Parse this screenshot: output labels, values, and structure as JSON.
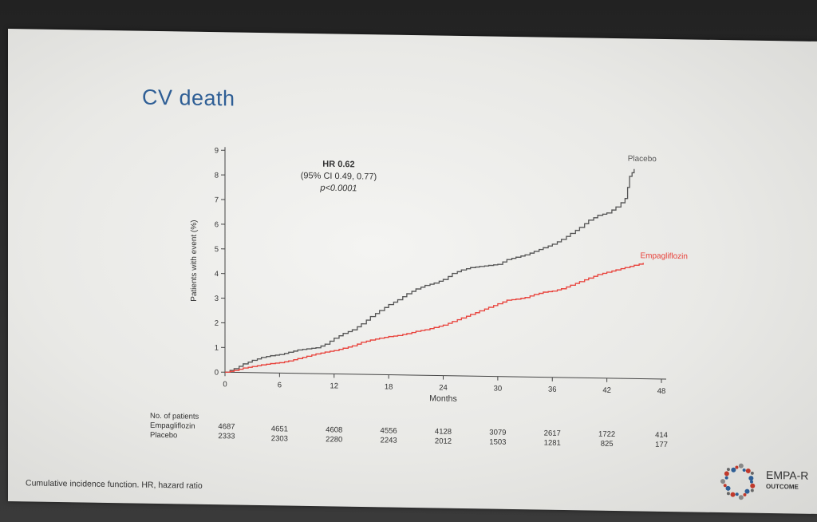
{
  "slide": {
    "title": "CV death",
    "footnote": "Cumulative incidence function. HR, hazard ratio"
  },
  "logo": {
    "line1": "EMPA-R",
    "line2": "OUTCOME"
  },
  "chart_data": {
    "type": "line",
    "ylabel": "Patients with event (%)",
    "xlabel": "Months",
    "xlim": [
      0,
      48
    ],
    "ylim": [
      0,
      9
    ],
    "x_ticks": [
      0,
      6,
      12,
      18,
      24,
      30,
      36,
      42,
      48
    ],
    "y_ticks": [
      0,
      1,
      2,
      3,
      4,
      5,
      6,
      7,
      8,
      9
    ],
    "grid": false,
    "annotation": {
      "hr": "HR 0.62",
      "ci": "(95% CI 0.49, 0.77)",
      "p": "p<0.0001"
    },
    "series": [
      {
        "name": "Placebo",
        "color": "#555555",
        "x": [
          0,
          1,
          2,
          3,
          4,
          5,
          6,
          7,
          8,
          9,
          10,
          11,
          12,
          13,
          14,
          15,
          16,
          17,
          18,
          19,
          20,
          21,
          22,
          23,
          24,
          25,
          26,
          27,
          28,
          29,
          30,
          31,
          32,
          33,
          34,
          35,
          36,
          37,
          38,
          39,
          40,
          41,
          42,
          43,
          44,
          44.5,
          45
        ],
        "y": [
          0,
          0.15,
          0.35,
          0.5,
          0.62,
          0.7,
          0.75,
          0.85,
          0.95,
          1.0,
          1.05,
          1.2,
          1.45,
          1.65,
          1.8,
          2.05,
          2.35,
          2.6,
          2.85,
          3.05,
          3.3,
          3.5,
          3.65,
          3.75,
          3.9,
          4.15,
          4.3,
          4.4,
          4.45,
          4.5,
          4.55,
          4.75,
          4.85,
          4.95,
          5.1,
          5.25,
          5.4,
          5.6,
          5.85,
          6.1,
          6.4,
          6.6,
          6.7,
          6.95,
          7.3,
          8.2,
          8.5
        ]
      },
      {
        "name": "Empagliflozin",
        "color": "#e8413a",
        "x": [
          0,
          1,
          2,
          3,
          4,
          5,
          6,
          7,
          8,
          9,
          10,
          11,
          12,
          13,
          14,
          15,
          16,
          17,
          18,
          19,
          20,
          21,
          22,
          23,
          24,
          25,
          26,
          27,
          28,
          29,
          30,
          31,
          32,
          33,
          34,
          35,
          36,
          37,
          38,
          39,
          40,
          41,
          42,
          43,
          44,
          45,
          46
        ],
        "y": [
          0,
          0.08,
          0.18,
          0.25,
          0.32,
          0.38,
          0.42,
          0.5,
          0.6,
          0.7,
          0.8,
          0.88,
          0.95,
          1.05,
          1.15,
          1.3,
          1.4,
          1.48,
          1.55,
          1.6,
          1.68,
          1.78,
          1.85,
          1.95,
          2.05,
          2.2,
          2.35,
          2.5,
          2.65,
          2.8,
          2.95,
          3.1,
          3.15,
          3.22,
          3.35,
          3.45,
          3.5,
          3.6,
          3.75,
          3.9,
          4.05,
          4.2,
          4.3,
          4.4,
          4.5,
          4.6,
          4.7
        ]
      }
    ]
  },
  "patients_table": {
    "header": "No. of patients",
    "months": [
      0,
      6,
      12,
      18,
      24,
      30,
      36,
      42,
      48
    ],
    "rows": [
      {
        "label": "Empagliflozin",
        "values": [
          "4687",
          "4651",
          "4608",
          "4556",
          "4128",
          "3079",
          "2617",
          "1722",
          "414"
        ]
      },
      {
        "label": "Placebo",
        "values": [
          "2333",
          "2303",
          "2280",
          "2243",
          "2012",
          "1503",
          "1281",
          "825",
          "177"
        ]
      }
    ]
  }
}
